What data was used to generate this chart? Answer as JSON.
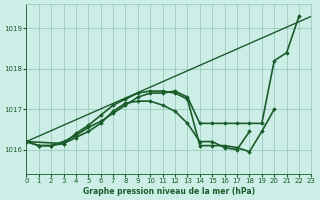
{
  "title": "Graphe pression niveau de la mer (hPa)",
  "background_color": "#cceee6",
  "grid_color": "#99ccbb",
  "line_color": "#1a5c2a",
  "xlim": [
    0,
    23
  ],
  "ylim": [
    1015.4,
    1019.6
  ],
  "yticks": [
    1016,
    1017,
    1018,
    1019
  ],
  "xticks": [
    0,
    1,
    2,
    3,
    4,
    5,
    6,
    7,
    8,
    9,
    10,
    11,
    12,
    13,
    14,
    15,
    16,
    17,
    18,
    19,
    20,
    21,
    22,
    23
  ],
  "series": [
    {
      "x": [
        0,
        23
      ],
      "y": [
        1016.2,
        1019.3
      ],
      "marker": false,
      "linewidth": 1.0
    },
    {
      "x": [
        0,
        1,
        2,
        3,
        4,
        5,
        6,
        7,
        8,
        9,
        10,
        11,
        12,
        13,
        14,
        15,
        16,
        17,
        18,
        19,
        20,
        21,
        22
      ],
      "y": [
        1016.2,
        1016.1,
        1016.1,
        1016.2,
        1016.35,
        1016.55,
        1016.7,
        1016.9,
        1017.1,
        1017.3,
        1017.4,
        1017.4,
        1017.45,
        1017.3,
        1016.65,
        1016.65,
        1016.65,
        1016.65,
        1016.65,
        1016.65,
        1018.2,
        1018.4,
        1019.3
      ],
      "marker": true,
      "linewidth": 1.2
    },
    {
      "x": [
        0,
        1,
        2,
        3,
        4,
        5,
        6,
        7,
        8,
        9,
        10,
        11,
        12,
        13,
        14,
        15,
        16,
        17,
        18,
        19,
        20
      ],
      "y": [
        1016.2,
        1016.1,
        1016.1,
        1016.15,
        1016.4,
        1016.6,
        1016.85,
        1017.1,
        1017.25,
        1017.4,
        1017.45,
        1017.45,
        1017.4,
        1017.25,
        1016.1,
        1016.1,
        1016.1,
        1016.05,
        1015.95,
        1016.45,
        1017.0
      ],
      "marker": true,
      "linewidth": 1.2
    },
    {
      "x": [
        0,
        3,
        4,
        5,
        6,
        7,
        8,
        9,
        10,
        11,
        12,
        13,
        14,
        15,
        16,
        17,
        18
      ],
      "y": [
        1016.2,
        1016.15,
        1016.3,
        1016.45,
        1016.65,
        1016.95,
        1017.15,
        1017.2,
        1017.2,
        1017.1,
        1016.95,
        1016.65,
        1016.2,
        1016.2,
        1016.05,
        1016.0,
        1016.45
      ],
      "marker": true,
      "linewidth": 1.2
    }
  ]
}
